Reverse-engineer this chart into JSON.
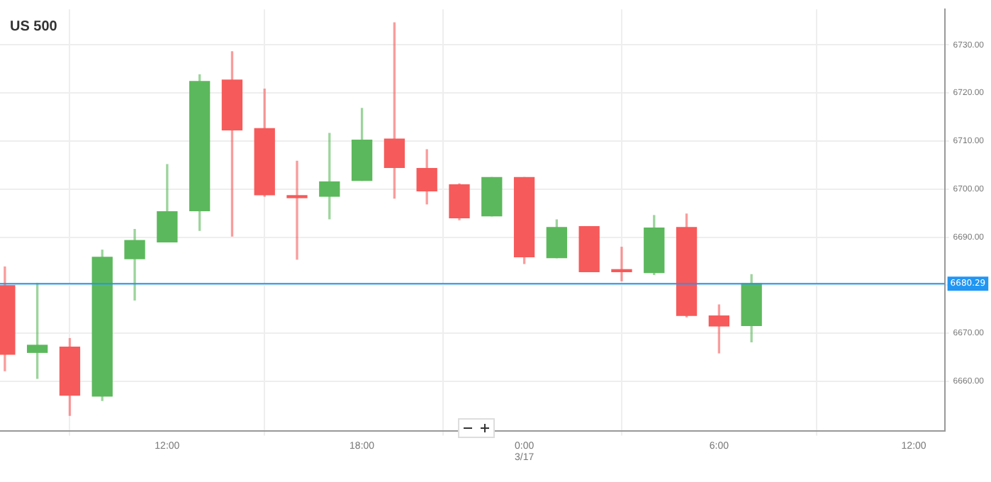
{
  "chart_data": {
    "type": "candlestick",
    "title": "US 500",
    "categories": [
      null,
      null,
      null,
      null,
      null,
      "12:00",
      null,
      null,
      null,
      null,
      null,
      "18:00",
      null,
      null,
      null,
      null,
      "0:00\n3/17",
      null,
      null,
      null,
      null,
      null,
      "6:00",
      null,
      null,
      null,
      null,
      null,
      "12:00"
    ],
    "ohlc": [
      [
        6679.9,
        6683.8,
        6662.2,
        6665.6
      ],
      [
        6666.0,
        6680.4,
        6660.6,
        6667.5
      ],
      [
        6667.1,
        6668.9,
        6652.9,
        6657.1
      ],
      [
        6656.9,
        6687.3,
        6656.0,
        6685.8
      ],
      [
        6685.5,
        6691.6,
        6676.9,
        6689.3
      ],
      [
        6689.0,
        6705.1,
        6689.0,
        6695.3
      ],
      [
        6695.5,
        6723.8,
        6691.4,
        6722.4
      ],
      [
        6722.7,
        6728.6,
        6690.2,
        6712.3
      ],
      [
        6712.6,
        6720.8,
        6698.5,
        6698.8
      ],
      [
        6698.5,
        6705.8,
        6685.4,
        6698.2
      ],
      [
        6698.5,
        6711.6,
        6693.8,
        6701.5
      ],
      [
        6701.8,
        6716.8,
        6701.8,
        6710.2
      ],
      [
        6710.4,
        6734.6,
        6698.1,
        6704.5
      ],
      [
        6704.3,
        6708.2,
        6696.9,
        6699.6
      ],
      [
        6700.9,
        6701.1,
        6693.6,
        6694.0
      ],
      [
        6694.4,
        6702.4,
        6694.4,
        6702.4
      ],
      [
        6702.4,
        6702.4,
        6684.5,
        6685.9
      ],
      [
        6685.7,
        6693.6,
        6685.7,
        6692.0
      ],
      [
        6692.2,
        6692.2,
        6682.8,
        6682.8
      ],
      [
        6683.2,
        6687.9,
        6680.9,
        6682.8
      ],
      [
        6682.6,
        6694.5,
        6682.2,
        6691.9
      ],
      [
        6692.0,
        6694.8,
        6673.4,
        6673.7
      ],
      [
        6673.6,
        6675.9,
        6665.9,
        6671.5
      ],
      [
        6671.6,
        6682.2,
        6668.2,
        6680.3
      ],
      null,
      null,
      null,
      null,
      null
    ],
    "colors": [
      "#f65a5a",
      "#5cb85c",
      "#f65a5a",
      "#5cb85c",
      "#5cb85c",
      "#5cb85c",
      "#5cb85c",
      "#f65a5a",
      "#f65a5a",
      "#f65a5a",
      "#5cb85c",
      "#5cb85c",
      "#f65a5a",
      "#f65a5a",
      "#f65a5a",
      "#5cb85c",
      "#f65a5a",
      "#5cb85c",
      "#f65a5a",
      "#f65a5a",
      "#5cb85c",
      "#f65a5a",
      "#f65a5a",
      "#5cb85c",
      null,
      null,
      null,
      null,
      null
    ],
    "ylim": [
      6649.6,
      6737.4
    ],
    "yticks": [
      {
        "value": 6660,
        "label": "6660.00"
      },
      {
        "value": 6670,
        "label": "6670.00"
      },
      {
        "value": 6680,
        "label": null
      },
      {
        "value": 6690,
        "label": "6690.00"
      },
      {
        "value": 6700,
        "label": "6700.00"
      },
      {
        "value": 6710,
        "label": "6710.00"
      },
      {
        "value": 6720,
        "label": "6720.00"
      },
      {
        "value": 6730,
        "label": "6730.00"
      }
    ],
    "ref_lines": [
      {
        "axis": "y",
        "value": 6680.29,
        "label": "6680.29",
        "color": "#2196f3"
      }
    ],
    "grid": true,
    "legend": false
  }
}
